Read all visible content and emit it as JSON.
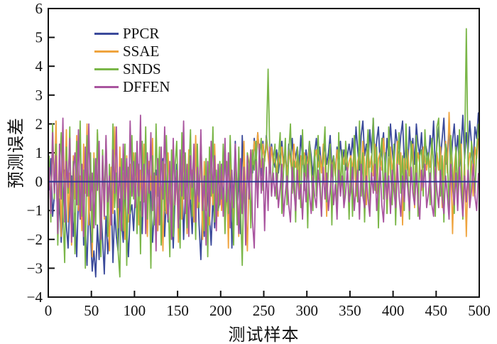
{
  "figure": {
    "background": "#ffffff",
    "axis_color": "#111111"
  },
  "chart_data": {
    "type": "line",
    "title": "",
    "xlabel": "测试样本",
    "ylabel": "预测误差",
    "xlim": [
      0,
      500
    ],
    "ylim": [
      -4,
      6
    ],
    "x_ticks": [
      0,
      50,
      100,
      150,
      200,
      250,
      300,
      350,
      400,
      450,
      500
    ],
    "y_ticks": [
      -4,
      -3,
      -2,
      -1,
      0,
      1,
      2,
      3,
      4,
      5,
      6
    ],
    "grid": false,
    "legend_position": "upper-left-inside",
    "zero_line": {
      "y": 0,
      "color": "#2c3590"
    },
    "x_start": 1,
    "x_step": 2,
    "series": [
      {
        "name": "PPCR",
        "color": "#3b4a9b",
        "values": [
          -0.3,
          0.8,
          -1.2,
          -0.5,
          0.9,
          -1.8,
          -0.6,
          -2.1,
          -0.9,
          0.4,
          -1.5,
          -2.3,
          -0.8,
          0.2,
          -1.9,
          -1.1,
          -2.6,
          -0.4,
          -1.3,
          0.6,
          -2.2,
          -1.6,
          -2.9,
          -0.7,
          -1.8,
          -3.1,
          -2.4,
          -3.3,
          -1.5,
          -2.7,
          -0.9,
          -2.0,
          -3.2,
          -1.2,
          -2.5,
          -1.7,
          -0.5,
          -2.8,
          -1.0,
          -1.9,
          -2.4,
          -0.6,
          -1.4,
          -2.1,
          -0.3,
          -1.6,
          -2.6,
          -1.1,
          -0.8,
          -1.7,
          -0.4,
          0.5,
          -1.3,
          -0.7,
          -1.8,
          0.3,
          -0.9,
          -1.5,
          0.7,
          -0.6,
          -2.1,
          -1.0,
          0.4,
          -1.7,
          -0.2,
          -1.2,
          0.8,
          -1.9,
          -0.5,
          -1.4,
          0.2,
          -0.8,
          -2.3,
          -0.6,
          0.6,
          -1.6,
          -1.0,
          0.3,
          -2.0,
          -0.4,
          -1.3,
          0.9,
          -0.7,
          -1.8,
          -0.2,
          -1.1,
          0.5,
          -1.5,
          -2.7,
          -0.9,
          -1.9,
          0.4,
          -0.6,
          -1.2,
          -2.2,
          -0.5,
          -1.6,
          0.2,
          -1.0,
          -0.7,
          0.6,
          -0.9,
          1.2,
          -0.4,
          -1.6,
          0.8,
          -2.3,
          -0.5,
          1.4,
          -1.1,
          0.3,
          -1.8,
          1.6,
          -0.2,
          -1.3,
          0.7,
          -0.5,
          1.0,
          0.3,
          1.5,
          0.6,
          1.7,
          0.9,
          0.2,
          1.4,
          0.7,
          1.6,
          1.0,
          0.4,
          1.3,
          0.8,
          0.5,
          1.1,
          0.3,
          0.9,
          1.4,
          0.6,
          1.0,
          0.2,
          1.3,
          0.7,
          1.5,
          0.4,
          0.9,
          1.2,
          0.5,
          1.6,
          0.8,
          0.3,
          1.1,
          0.6,
          1.4,
          0.9,
          0.2,
          1.0,
          1.5,
          0.7,
          1.2,
          0.4,
          0.8,
          1.3,
          0.6,
          1.0,
          1.6,
          0.5,
          0.9,
          0.3,
          1.2,
          0.8,
          1.4,
          0.6,
          1.1,
          0.4,
          0.9,
          1.3,
          0.8,
          1.5,
          0.6,
          1.9,
          1.1,
          0.4,
          1.6,
          2.1,
          0.9,
          1.3,
          0.5,
          1.8,
          1.0,
          2.2,
          0.7,
          1.4,
          1.9,
          0.6,
          1.2,
          1.7,
          0.3,
          1.5,
          0.9,
          2.0,
          1.1,
          0.5,
          1.8,
          1.3,
          0.8,
          1.6,
          2.1,
          0.7,
          1.2,
          0.4,
          1.9,
          1.0,
          1.5,
          0.6,
          2.0,
          1.3,
          0.9,
          1.7,
          0.5,
          1.4,
          1.1,
          0.7,
          1.6,
          1.0,
          2.1,
          0.5,
          1.3,
          1.9,
          0.8,
          1.5,
          2.2,
          0.6,
          1.1,
          1.8,
          0.4,
          1.4,
          2.0,
          0.9,
          1.6,
          0.5,
          1.2,
          2.3,
          0.8,
          1.7,
          1.0,
          2.1,
          1.3,
          0.6,
          1.9,
          1.5,
          2.4
        ]
      },
      {
        "name": "SSAE",
        "color": "#efa43e",
        "values": [
          0.4,
          -0.8,
          1.5,
          -0.3,
          2.1,
          -1.2,
          0.7,
          -1.9,
          1.1,
          -0.5,
          1.8,
          -1.4,
          0.3,
          -2.2,
          0.9,
          -0.6,
          1.6,
          -1.0,
          0.2,
          -1.7,
          1.3,
          -0.4,
          2.0,
          -1.5,
          0.6,
          -2.6,
          1.0,
          -0.9,
          1.7,
          -0.3,
          -1.8,
          0.8,
          -1.3,
          1.4,
          -0.7,
          -2.4,
          0.5,
          -1.1,
          1.9,
          -0.2,
          -1.6,
          1.2,
          -0.8,
          0.3,
          -2.0,
          0.9,
          -1.4,
          0.6,
          -0.5,
          1.0,
          -0.7,
          0.9,
          -1.5,
          0.4,
          -1.0,
          1.3,
          -0.6,
          -1.9,
          0.7,
          -0.3,
          1.5,
          -1.2,
          0.2,
          -1.7,
          0.8,
          -0.5,
          -2.4,
          0.6,
          -1.1,
          1.0,
          -0.4,
          -1.6,
          1.4,
          -0.8,
          0.3,
          -2.1,
          0.5,
          -1.3,
          0.9,
          -0.2,
          -1.8,
          1.1,
          -0.6,
          0.4,
          -1.4,
          1.6,
          -0.9,
          -0.3,
          1.2,
          -2.0,
          0.7,
          -1.0,
          0.5,
          -1.5,
          0.2,
          -0.8,
          1.3,
          -0.4,
          -1.2,
          0.6,
          -1.0,
          0.8,
          -1.7,
          0.3,
          -2.3,
          1.2,
          -0.6,
          -1.4,
          0.9,
          -0.2,
          -1.9,
          0.5,
          -1.1,
          1.4,
          -0.7,
          -2.4,
          0.4,
          1.1,
          0.6,
          1.4,
          0.8,
          1.7,
          1.0,
          0.5,
          1.3,
          0.7,
          1.5,
          0.9,
          0.3,
          1.2,
          0.6,
          0.8,
          0.3,
          1.0,
          0.6,
          1.2,
          0.4,
          0.9,
          0.2,
          1.1,
          0.7,
          0.3,
          1.3,
          0.5,
          0.8,
          -0.4,
          0.9,
          0.6,
          1.0,
          0.2,
          0.7,
          1.2,
          0.4,
          -0.6,
          0.8,
          1.1,
          0.5,
          0.9,
          0.3,
          1.3,
          0.6,
          -1.2,
          0.7,
          1.0,
          0.4,
          0.8,
          0.2,
          1.1,
          0.5,
          -0.3,
          0.9,
          0.6,
          1.2,
          0.3,
          0.7,
          0.9,
          0.4,
          1.2,
          -0.5,
          0.7,
          1.0,
          0.3,
          1.4,
          0.6,
          -0.8,
          1.1,
          0.5,
          0.9,
          0.2,
          1.3,
          -0.4,
          0.8,
          1.0,
          0.4,
          1.5,
          0.7,
          -1.1,
          0.5,
          1.2,
          0.3,
          0.9,
          -0.6,
          1.4,
          0.6,
          1.0,
          -1.5,
          0.8,
          0.4,
          1.1,
          0.2,
          0.7,
          1.3,
          -0.9,
          0.5,
          1.0,
          0.6,
          -0.3,
          1.2,
          0.8,
          0.4,
          0.9,
          0.5,
          1.3,
          0.7,
          -0.6,
          1.0,
          0.4,
          1.2,
          -0.9,
          0.6,
          1.4,
          0.3,
          2.4,
          0.8,
          -1.8,
          0.5,
          1.1,
          -0.4,
          0.9,
          1.3,
          -1.0,
          0.6,
          -1.9,
          0.4,
          1.0,
          0.7,
          -0.5,
          1.2,
          0.8,
          1.5
        ]
      },
      {
        "name": "SNDS",
        "color": "#7ab648",
        "values": [
          0.9,
          -1.4,
          2.0,
          -0.6,
          1.3,
          -2.2,
          0.5,
          1.7,
          -1.0,
          -2.8,
          1.2,
          -0.4,
          1.9,
          -1.6,
          0.7,
          -2.5,
          1.4,
          -0.8,
          2.1,
          -1.2,
          0.4,
          -3.0,
          1.6,
          -0.5,
          1.0,
          -2.1,
          0.8,
          -1.5,
          1.8,
          -0.3,
          -2.6,
          1.1,
          -0.7,
          1.5,
          -1.9,
          0.6,
          -1.2,
          2.0,
          -0.9,
          0.3,
          -2.4,
          -3.3,
          0.8,
          -1.7,
          1.3,
          -2.9,
          0.5,
          -1.1,
          1.6,
          -0.6,
          1.0,
          -1.8,
          0.6,
          -2.5,
          1.4,
          -0.7,
          1.9,
          -1.3,
          0.4,
          -3.0,
          0.9,
          -1.5,
          2.0,
          -0.5,
          1.2,
          -2.2,
          0.7,
          -1.0,
          1.6,
          -0.4,
          -2.6,
          1.1,
          -1.9,
          0.5,
          1.4,
          -0.8,
          -2.3,
          1.7,
          -0.6,
          1.0,
          -1.6,
          0.3,
          1.8,
          -1.2,
          0.6,
          -2.0,
          1.3,
          -0.9,
          1.5,
          -0.3,
          -1.7,
          0.8,
          -2.6,
          1.2,
          -0.5,
          1.9,
          -1.4,
          0.4,
          -1.0,
          0.7,
          -0.6,
          1.3,
          -1.8,
          0.7,
          -1.1,
          1.6,
          -0.4,
          -2.2,
          0.9,
          -1.5,
          1.2,
          -0.8,
          -2.9,
          0.5,
          -1.3,
          1.0,
          0.6,
          -1.6,
          1.1,
          0.4,
          1.4,
          -0.7,
          0.9,
          1.5,
          -0.3,
          0.8,
          1.2,
          3.9,
          1.0,
          -0.5,
          0.7,
          1.3,
          -0.6,
          0.8,
          1.7,
          -1.1,
          0.4,
          1.5,
          -0.8,
          1.0,
          2.0,
          -0.4,
          0.7,
          -1.4,
          1.2,
          0.5,
          -0.9,
          1.8,
          -0.3,
          0.9,
          -1.6,
          1.4,
          0.6,
          -1.0,
          1.1,
          -0.5,
          1.6,
          0.3,
          -1.2,
          0.8,
          1.9,
          -0.7,
          0.5,
          1.3,
          -1.5,
          0.9,
          0.4,
          -1.0,
          1.7,
          -0.4,
          1.1,
          -0.8,
          1.4,
          0.6,
          -1.3,
          0.8,
          -1.2,
          1.6,
          0.4,
          -0.7,
          2.1,
          -0.5,
          1.0,
          -1.4,
          0.7,
          1.8,
          -0.9,
          0.5,
          2.2,
          -0.3,
          1.2,
          -1.6,
          0.8,
          1.5,
          -0.6,
          1.0,
          -1.1,
          1.9,
          0.4,
          -0.8,
          1.3,
          -1.5,
          0.6,
          1.7,
          -0.4,
          0.9,
          -1.0,
          2.0,
          0.5,
          -1.3,
          1.4,
          0.7,
          -0.6,
          1.6,
          -1.2,
          0.9,
          1.1,
          -0.5,
          1.8,
          0.6,
          1.0,
          -0.8,
          1.5,
          0.6,
          -1.2,
          1.9,
          2.2,
          -0.5,
          0.9,
          -1.4,
          1.3,
          0.7,
          -0.9,
          1.6,
          0.4,
          -1.1,
          1.2,
          -0.6,
          1.8,
          0.5,
          -1.3,
          0.9,
          5.3,
          0.6,
          -0.7,
          1.4,
          0.8,
          -0.4,
          1.1,
          2.0
        ]
      },
      {
        "name": "DFFEN",
        "color": "#a9559f",
        "values": [
          0.5,
          -1.1,
          1.7,
          -0.4,
          0.9,
          -1.8,
          1.3,
          -0.6,
          2.2,
          -1.4,
          0.7,
          -0.2,
          1.5,
          -2.1,
          0.4,
          1.0,
          -0.8,
          1.8,
          -1.3,
          0.6,
          -1.9,
          1.2,
          -0.5,
          2.0,
          -1.0,
          0.3,
          -1.6,
          0.8,
          -0.3,
          1.4,
          -2.0,
          0.9,
          -1.2,
          1.6,
          -0.7,
          0.2,
          -1.5,
          1.1,
          -0.4,
          1.9,
          -0.9,
          0.5,
          -1.7,
          1.3,
          -0.6,
          0.8,
          -1.1,
          2.1,
          -0.5,
          0.7,
          -0.9,
          1.4,
          -0.5,
          2.3,
          -1.2,
          0.6,
          -1.8,
          1.0,
          -0.4,
          1.7,
          -1.0,
          0.3,
          -2.4,
          0.8,
          -1.5,
          1.2,
          -0.6,
          1.9,
          -0.3,
          -1.3,
          0.7,
          -2.0,
          1.5,
          -0.8,
          0.4,
          -1.6,
          1.1,
          -0.5,
          2.1,
          -1.1,
          0.6,
          -1.9,
          0.9,
          -0.2,
          1.3,
          -1.4,
          0.5,
          -0.7,
          1.8,
          -1.0,
          0.2,
          -2.2,
          0.7,
          -1.2,
          1.4,
          -0.4,
          0.9,
          -1.7,
          0.6,
          -0.8,
          0.6,
          -1.2,
          1.5,
          -0.7,
          1.0,
          -1.6,
          0.4,
          -0.9,
          1.3,
          -0.3,
          -1.8,
          0.8,
          -1.1,
          0.5,
          -2.2,
          0.9,
          -0.6,
          1.1,
          -1.4,
          -2.3,
          0.7,
          -0.9,
          1.3,
          -0.4,
          0.8,
          -1.7,
          0.5,
          -1.0,
          1.2,
          -0.5,
          0.3,
          -0.5,
          0.3,
          -0.9,
          -0.2,
          0.6,
          -1.2,
          -0.4,
          0.2,
          -0.8,
          -1.4,
          0.5,
          -0.3,
          -1.0,
          0.4,
          -0.6,
          -0.1,
          -1.3,
          0.3,
          -0.7,
          0.6,
          -0.4,
          -1.1,
          0.2,
          -0.5,
          -0.9,
          0.4,
          -0.2,
          -1.2,
          0.5,
          -0.6,
          0.3,
          -1.0,
          -0.3,
          0.6,
          -0.8,
          -0.1,
          -1.3,
          0.4,
          -0.5,
          0.2,
          -0.9,
          -0.4,
          0.5,
          -0.7,
          -0.3,
          0.5,
          -1.0,
          -0.2,
          0.4,
          -1.3,
          0.6,
          -0.5,
          -0.9,
          0.2,
          -0.6,
          -1.2,
          0.3,
          -0.4,
          0.6,
          -1.0,
          -0.2,
          0.5,
          -0.8,
          -1.4,
          0.3,
          -0.6,
          0.2,
          -1.1,
          0.4,
          -0.3,
          -0.9,
          0.6,
          -0.5,
          -1.2,
          0.2,
          -0.7,
          0.4,
          -0.2,
          -1.0,
          0.5,
          -0.4,
          -0.8,
          0.3,
          -0.6,
          -1.3,
          0.4,
          -0.2,
          0.6,
          -0.9,
          -0.4,
          0.3,
          -0.8,
          -1.2,
          0.5,
          -0.3,
          -0.9,
          0.4,
          -0.6,
          -1.1,
          0.2,
          -0.5,
          -1.3,
          0.6,
          -0.2,
          -0.8,
          0.3,
          -1.0,
          0.5,
          -0.4,
          -1.2,
          0.2,
          -0.7,
          0.4,
          -0.9,
          -0.3,
          0.6,
          -0.5,
          -1.0,
          0.3
        ]
      }
    ]
  }
}
